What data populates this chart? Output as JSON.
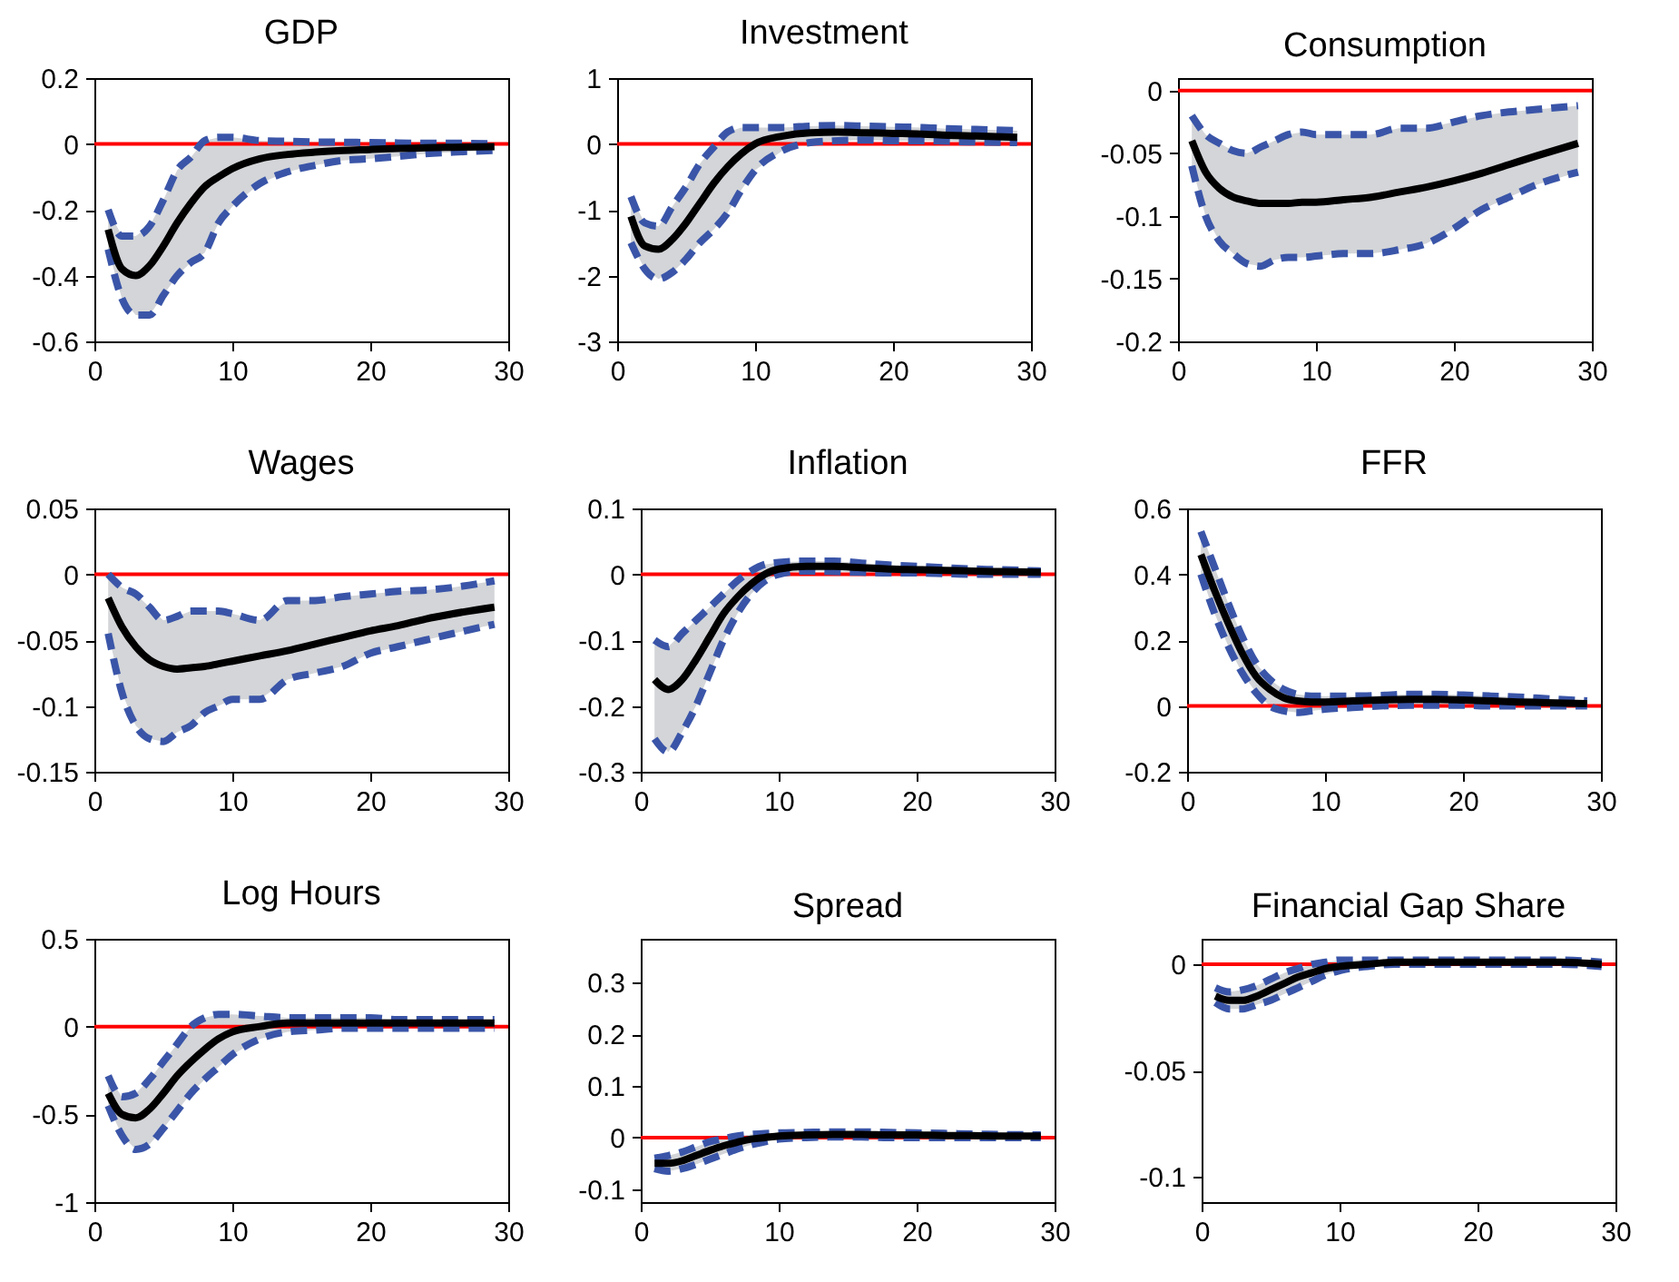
{
  "chart_data": [
    {
      "type": "line",
      "title": "GDP",
      "x": [
        1,
        2,
        3,
        4,
        5,
        6,
        7,
        8,
        9,
        10,
        12,
        14,
        16,
        18,
        20,
        22,
        24,
        26,
        29
      ],
      "xlim": [
        0,
        30
      ],
      "xticks": [
        0,
        10,
        20,
        30
      ],
      "ylim": [
        -0.6,
        0.2
      ],
      "yticks": [
        -0.6,
        -0.4,
        -0.2,
        0,
        0.2
      ],
      "ref_lines": [
        {
          "axis": "y",
          "value": 0,
          "color": "#ff0000"
        }
      ],
      "series": [
        {
          "color": "#3a55a8",
          "line_style": "dashed",
          "values": [
            -0.32,
            -0.47,
            -0.52,
            -0.52,
            -0.46,
            -0.4,
            -0.36,
            -0.33,
            -0.24,
            -0.19,
            -0.12,
            -0.085,
            -0.065,
            -0.05,
            -0.045,
            -0.038,
            -0.03,
            -0.025,
            -0.02
          ]
        },
        {
          "color": "#3a55a8",
          "line_style": "dashed",
          "values": [
            -0.2,
            -0.28,
            -0.28,
            -0.25,
            -0.17,
            -0.08,
            -0.04,
            0.01,
            0.02,
            0.02,
            0.01,
            0.008,
            0.006,
            0.005,
            0.004,
            0.003,
            0.002,
            0.002,
            0.0
          ]
        },
        {
          "color": "#000000",
          "line_style": "solid",
          "values": [
            -0.26,
            -0.38,
            -0.4,
            -0.37,
            -0.31,
            -0.24,
            -0.18,
            -0.13,
            -0.1,
            -0.075,
            -0.045,
            -0.032,
            -0.025,
            -0.02,
            -0.017,
            -0.014,
            -0.012,
            -0.01,
            -0.008
          ],
          "lower": [
            -0.32,
            -0.47,
            -0.52,
            -0.52,
            -0.46,
            -0.4,
            -0.36,
            -0.33,
            -0.24,
            -0.19,
            -0.12,
            -0.085,
            -0.065,
            -0.05,
            -0.045,
            -0.038,
            -0.03,
            -0.025,
            -0.02
          ],
          "upper": [
            -0.2,
            -0.28,
            -0.28,
            -0.25,
            -0.17,
            -0.08,
            -0.04,
            0.01,
            0.02,
            0.02,
            0.01,
            0.008,
            0.006,
            0.005,
            0.004,
            0.003,
            0.002,
            0.002,
            0.0
          ]
        }
      ]
    },
    {
      "type": "line",
      "title": "Investment",
      "x": [
        1,
        2,
        3,
        4,
        5,
        6,
        7,
        8,
        9,
        10,
        12,
        14,
        16,
        18,
        20,
        22,
        24,
        26,
        29
      ],
      "xlim": [
        0,
        30
      ],
      "xticks": [
        0,
        10,
        20,
        30
      ],
      "ylim": [
        -3,
        1
      ],
      "yticks": [
        -3,
        -2,
        -1,
        0,
        1
      ],
      "ref_lines": [
        {
          "axis": "y",
          "value": 0,
          "color": "#ff0000"
        }
      ],
      "series": [
        {
          "color": "#3a55a8",
          "line_style": "dashed",
          "values": [
            -1.5,
            -1.9,
            -2.05,
            -1.95,
            -1.75,
            -1.5,
            -1.3,
            -1.05,
            -0.7,
            -0.4,
            -0.1,
            0.02,
            0.05,
            0.06,
            0.05,
            0.05,
            0.04,
            0.03,
            0.02
          ]
        },
        {
          "color": "#3a55a8",
          "line_style": "dashed",
          "values": [
            -0.8,
            -1.2,
            -1.25,
            -0.95,
            -0.65,
            -0.3,
            -0.05,
            0.18,
            0.25,
            0.25,
            0.25,
            0.27,
            0.28,
            0.27,
            0.26,
            0.25,
            0.23,
            0.22,
            0.2
          ]
        },
        {
          "color": "#000000",
          "line_style": "solid",
          "values": [
            -1.1,
            -1.55,
            -1.6,
            -1.45,
            -1.2,
            -0.9,
            -0.6,
            -0.35,
            -0.15,
            0,
            0.12,
            0.17,
            0.18,
            0.17,
            0.16,
            0.15,
            0.13,
            0.12,
            0.1
          ],
          "lower": [
            -1.5,
            -1.9,
            -2.05,
            -1.95,
            -1.75,
            -1.5,
            -1.3,
            -1.05,
            -0.7,
            -0.4,
            -0.1,
            0.02,
            0.05,
            0.06,
            0.05,
            0.05,
            0.04,
            0.03,
            0.02
          ],
          "upper": [
            -0.8,
            -1.2,
            -1.25,
            -0.95,
            -0.65,
            -0.3,
            -0.05,
            0.18,
            0.25,
            0.25,
            0.25,
            0.27,
            0.28,
            0.27,
            0.26,
            0.25,
            0.23,
            0.22,
            0.2
          ]
        }
      ]
    },
    {
      "type": "line",
      "title": "Consumption",
      "x": [
        1,
        2,
        3,
        4,
        5,
        6,
        7,
        8,
        9,
        10,
        12,
        14,
        16,
        18,
        20,
        22,
        24,
        26,
        29
      ],
      "xlim": [
        0,
        30
      ],
      "xticks": [
        0,
        10,
        20,
        30
      ],
      "ylim": [
        -0.2,
        0.01
      ],
      "yticks": [
        -0.2,
        -0.15,
        -0.1,
        -0.05,
        0
      ],
      "ref_lines": [
        {
          "axis": "y",
          "value": 0,
          "color": "#ff0000"
        }
      ],
      "series": [
        {
          "color": "#3a55a8",
          "line_style": "dashed",
          "values": [
            -0.06,
            -0.1,
            -0.12,
            -0.13,
            -0.138,
            -0.14,
            -0.135,
            -0.133,
            -0.133,
            -0.132,
            -0.13,
            -0.13,
            -0.127,
            -0.122,
            -0.11,
            -0.095,
            -0.085,
            -0.075,
            -0.065
          ]
        },
        {
          "color": "#3a55a8",
          "line_style": "dashed",
          "values": [
            -0.02,
            -0.035,
            -0.042,
            -0.048,
            -0.05,
            -0.045,
            -0.04,
            -0.035,
            -0.033,
            -0.035,
            -0.035,
            -0.035,
            -0.03,
            -0.03,
            -0.025,
            -0.02,
            -0.017,
            -0.015,
            -0.012
          ]
        },
        {
          "color": "#000000",
          "line_style": "solid",
          "values": [
            -0.04,
            -0.065,
            -0.078,
            -0.085,
            -0.088,
            -0.09,
            -0.09,
            -0.09,
            -0.089,
            -0.089,
            -0.087,
            -0.085,
            -0.081,
            -0.077,
            -0.072,
            -0.066,
            -0.059,
            -0.052,
            -0.042
          ],
          "lower": [
            -0.06,
            -0.1,
            -0.12,
            -0.13,
            -0.138,
            -0.14,
            -0.135,
            -0.133,
            -0.133,
            -0.132,
            -0.13,
            -0.13,
            -0.127,
            -0.122,
            -0.11,
            -0.095,
            -0.085,
            -0.075,
            -0.065
          ],
          "upper": [
            -0.02,
            -0.035,
            -0.042,
            -0.048,
            -0.05,
            -0.045,
            -0.04,
            -0.035,
            -0.033,
            -0.035,
            -0.035,
            -0.035,
            -0.03,
            -0.03,
            -0.025,
            -0.02,
            -0.017,
            -0.015,
            -0.012
          ]
        }
      ]
    },
    {
      "type": "line",
      "title": "Wages",
      "x": [
        1,
        2,
        3,
        4,
        5,
        6,
        7,
        8,
        9,
        10,
        12,
        14,
        16,
        18,
        20,
        22,
        24,
        26,
        29
      ],
      "xlim": [
        0,
        30
      ],
      "xticks": [
        0,
        10,
        20,
        30
      ],
      "ylim": [
        -0.15,
        0.05
      ],
      "yticks": [
        -0.15,
        -0.1,
        -0.05,
        0,
        0.05
      ],
      "ref_lines": [
        {
          "axis": "y",
          "value": 0,
          "color": "#ff0000"
        }
      ],
      "series": [
        {
          "color": "#3a55a8",
          "line_style": "dashed",
          "values": [
            -0.045,
            -0.09,
            -0.115,
            -0.125,
            -0.127,
            -0.12,
            -0.115,
            -0.105,
            -0.1,
            -0.095,
            -0.095,
            -0.08,
            -0.075,
            -0.07,
            -0.06,
            -0.055,
            -0.05,
            -0.045,
            -0.038
          ]
        },
        {
          "color": "#3a55a8",
          "line_style": "dashed",
          "values": [
            0.0,
            -0.01,
            -0.015,
            -0.025,
            -0.035,
            -0.032,
            -0.028,
            -0.028,
            -0.028,
            -0.03,
            -0.035,
            -0.02,
            -0.02,
            -0.017,
            -0.015,
            -0.013,
            -0.012,
            -0.01,
            -0.005
          ]
        },
        {
          "color": "#000000",
          "line_style": "solid",
          "values": [
            -0.018,
            -0.04,
            -0.055,
            -0.065,
            -0.07,
            -0.072,
            -0.071,
            -0.07,
            -0.068,
            -0.066,
            -0.062,
            -0.058,
            -0.053,
            -0.048,
            -0.043,
            -0.039,
            -0.034,
            -0.03,
            -0.025
          ],
          "lower": [
            -0.045,
            -0.09,
            -0.115,
            -0.125,
            -0.127,
            -0.12,
            -0.115,
            -0.105,
            -0.1,
            -0.095,
            -0.095,
            -0.08,
            -0.075,
            -0.07,
            -0.06,
            -0.055,
            -0.05,
            -0.045,
            -0.038
          ],
          "upper": [
            0.0,
            -0.01,
            -0.015,
            -0.025,
            -0.035,
            -0.032,
            -0.028,
            -0.028,
            -0.028,
            -0.03,
            -0.035,
            -0.02,
            -0.02,
            -0.017,
            -0.015,
            -0.013,
            -0.012,
            -0.01,
            -0.005
          ]
        }
      ]
    },
    {
      "type": "line",
      "title": "Inflation",
      "x": [
        1,
        2,
        3,
        4,
        5,
        6,
        7,
        8,
        9,
        10,
        12,
        14,
        16,
        18,
        20,
        22,
        24,
        26,
        29
      ],
      "xlim": [
        0,
        30
      ],
      "xticks": [
        0,
        10,
        20,
        30
      ],
      "ylim": [
        -0.3,
        0.1
      ],
      "yticks": [
        -0.3,
        -0.2,
        -0.1,
        0,
        0.1
      ],
      "ref_lines": [
        {
          "axis": "y",
          "value": 0,
          "color": "#ff0000"
        }
      ],
      "series": [
        {
          "color": "#3a55a8",
          "line_style": "dashed",
          "values": [
            -0.25,
            -0.27,
            -0.24,
            -0.2,
            -0.15,
            -0.1,
            -0.06,
            -0.03,
            -0.01,
            0.0,
            0.005,
            0.004,
            0.003,
            0.002,
            0.002,
            0.001,
            0.0,
            0.0,
            0.0
          ]
        },
        {
          "color": "#3a55a8",
          "line_style": "dashed",
          "values": [
            -0.1,
            -0.11,
            -0.09,
            -0.07,
            -0.05,
            -0.03,
            -0.01,
            0.005,
            0.015,
            0.018,
            0.02,
            0.02,
            0.017,
            0.014,
            0.012,
            0.01,
            0.008,
            0.007,
            0.005
          ]
        },
        {
          "color": "#000000",
          "line_style": "solid",
          "values": [
            -0.16,
            -0.175,
            -0.16,
            -0.13,
            -0.095,
            -0.06,
            -0.035,
            -0.015,
            0.0,
            0.008,
            0.012,
            0.012,
            0.01,
            0.008,
            0.007,
            0.006,
            0.005,
            0.004,
            0.003
          ],
          "lower": [
            -0.25,
            -0.27,
            -0.24,
            -0.2,
            -0.15,
            -0.1,
            -0.06,
            -0.03,
            -0.01,
            0.0,
            0.005,
            0.004,
            0.003,
            0.002,
            0.002,
            0.001,
            0.0,
            0.0,
            0.0
          ],
          "upper": [
            -0.1,
            -0.11,
            -0.09,
            -0.07,
            -0.05,
            -0.03,
            -0.01,
            0.005,
            0.015,
            0.018,
            0.02,
            0.02,
            0.017,
            0.014,
            0.012,
            0.01,
            0.008,
            0.007,
            0.005
          ]
        }
      ]
    },
    {
      "type": "line",
      "title": "FFR",
      "x": [
        1,
        2,
        3,
        4,
        5,
        6,
        7,
        8,
        9,
        10,
        12,
        14,
        16,
        18,
        20,
        22,
        24,
        26,
        29
      ],
      "xlim": [
        0,
        30
      ],
      "xticks": [
        0,
        10,
        20,
        30
      ],
      "ylim": [
        -0.2,
        0.6
      ],
      "yticks": [
        -0.2,
        0,
        0.2,
        0.4,
        0.6
      ],
      "ref_lines": [
        {
          "axis": "y",
          "value": 0,
          "color": "#ff0000"
        }
      ],
      "series": [
        {
          "color": "#3a55a8",
          "line_style": "dashed",
          "values": [
            0.4,
            0.28,
            0.18,
            0.1,
            0.04,
            0.0,
            -0.015,
            -0.02,
            -0.015,
            -0.01,
            -0.005,
            0.0,
            0.002,
            0.002,
            0.002,
            0.0,
            0.0,
            0.0,
            0.0
          ]
        },
        {
          "color": "#3a55a8",
          "line_style": "dashed",
          "values": [
            0.53,
            0.42,
            0.31,
            0.21,
            0.13,
            0.08,
            0.05,
            0.035,
            0.03,
            0.03,
            0.03,
            0.032,
            0.035,
            0.035,
            0.033,
            0.03,
            0.027,
            0.022,
            0.015
          ]
        },
        {
          "color": "#000000",
          "line_style": "solid",
          "values": [
            0.46,
            0.35,
            0.25,
            0.16,
            0.09,
            0.05,
            0.025,
            0.015,
            0.012,
            0.012,
            0.015,
            0.018,
            0.02,
            0.02,
            0.018,
            0.015,
            0.012,
            0.01,
            0.007
          ],
          "lower": [
            0.4,
            0.28,
            0.18,
            0.1,
            0.04,
            0.0,
            -0.015,
            -0.02,
            -0.015,
            -0.01,
            -0.005,
            0.0,
            0.002,
            0.002,
            0.002,
            0.0,
            0.0,
            0.0,
            0.0
          ],
          "upper": [
            0.53,
            0.42,
            0.31,
            0.21,
            0.13,
            0.08,
            0.05,
            0.035,
            0.03,
            0.03,
            0.03,
            0.032,
            0.035,
            0.035,
            0.033,
            0.03,
            0.027,
            0.022,
            0.015
          ]
        }
      ]
    },
    {
      "type": "line",
      "title": "Log Hours",
      "x": [
        1,
        2,
        3,
        4,
        5,
        6,
        7,
        8,
        9,
        10,
        12,
        14,
        16,
        18,
        20,
        22,
        24,
        26,
        29
      ],
      "xlim": [
        0,
        30
      ],
      "xticks": [
        0,
        10,
        20,
        30
      ],
      "ylim": [
        -1,
        0.5
      ],
      "yticks": [
        -1,
        -0.5,
        0,
        0.5
      ],
      "ref_lines": [
        {
          "axis": "y",
          "value": 0,
          "color": "#ff0000"
        }
      ],
      "series": [
        {
          "color": "#3a55a8",
          "line_style": "dashed",
          "values": [
            -0.45,
            -0.62,
            -0.7,
            -0.67,
            -0.58,
            -0.48,
            -0.38,
            -0.3,
            -0.23,
            -0.16,
            -0.07,
            -0.03,
            -0.02,
            -0.01,
            -0.01,
            -0.01,
            -0.01,
            -0.01,
            -0.01
          ]
        },
        {
          "color": "#3a55a8",
          "line_style": "dashed",
          "values": [
            -0.28,
            -0.4,
            -0.38,
            -0.3,
            -0.2,
            -0.1,
            0.0,
            0.05,
            0.07,
            0.07,
            0.06,
            0.05,
            0.05,
            0.05,
            0.05,
            0.04,
            0.04,
            0.04,
            0.04
          ]
        },
        {
          "color": "#000000",
          "line_style": "solid",
          "values": [
            -0.38,
            -0.5,
            -0.52,
            -0.47,
            -0.38,
            -0.28,
            -0.2,
            -0.13,
            -0.07,
            -0.03,
            0.0,
            0.02,
            0.02,
            0.02,
            0.02,
            0.02,
            0.02,
            0.02,
            0.02
          ],
          "lower": [
            -0.45,
            -0.62,
            -0.7,
            -0.67,
            -0.58,
            -0.48,
            -0.38,
            -0.3,
            -0.23,
            -0.16,
            -0.07,
            -0.03,
            -0.02,
            -0.01,
            -0.01,
            -0.01,
            -0.01,
            -0.01,
            -0.01
          ],
          "upper": [
            -0.28,
            -0.4,
            -0.38,
            -0.3,
            -0.2,
            -0.1,
            0.0,
            0.05,
            0.07,
            0.07,
            0.06,
            0.05,
            0.05,
            0.05,
            0.05,
            0.04,
            0.04,
            0.04,
            0.04
          ]
        }
      ]
    },
    {
      "type": "line",
      "title": "Spread",
      "x": [
        1,
        2,
        3,
        4,
        5,
        6,
        7,
        8,
        9,
        10,
        12,
        14,
        16,
        18,
        20,
        22,
        24,
        26,
        29
      ],
      "xlim": [
        0,
        30
      ],
      "xticks": [
        0,
        10,
        20,
        30
      ],
      "ylim": [
        -0.125,
        0.385
      ],
      "yticks": [
        -0.1,
        0,
        0.1,
        0.2,
        0.3
      ],
      "ref_lines": [
        {
          "axis": "y",
          "value": 0,
          "color": "#ff0000"
        }
      ],
      "series": [
        {
          "color": "#3a55a8",
          "line_style": "dashed",
          "values": [
            -0.06,
            -0.065,
            -0.06,
            -0.052,
            -0.042,
            -0.032,
            -0.022,
            -0.014,
            -0.008,
            -0.003,
            0.0,
            0.001,
            0.001,
            0.0,
            0.0,
            0.0,
            0.0,
            0.0,
            0.0
          ]
        },
        {
          "color": "#3a55a8",
          "line_style": "dashed",
          "values": [
            -0.04,
            -0.035,
            -0.028,
            -0.018,
            -0.008,
            -0.002,
            0.003,
            0.006,
            0.008,
            0.009,
            0.01,
            0.011,
            0.011,
            0.01,
            0.009,
            0.008,
            0.007,
            0.006,
            0.005
          ]
        },
        {
          "color": "#000000",
          "line_style": "solid",
          "values": [
            -0.05,
            -0.05,
            -0.045,
            -0.035,
            -0.025,
            -0.016,
            -0.009,
            -0.003,
            0.0,
            0.003,
            0.005,
            0.006,
            0.006,
            0.005,
            0.005,
            0.004,
            0.004,
            0.003,
            0.003
          ],
          "lower": [
            -0.06,
            -0.065,
            -0.06,
            -0.052,
            -0.042,
            -0.032,
            -0.022,
            -0.014,
            -0.008,
            -0.003,
            0.0,
            0.001,
            0.001,
            0.0,
            0.0,
            0.0,
            0.0,
            0.0,
            0.0
          ],
          "upper": [
            -0.04,
            -0.035,
            -0.028,
            -0.018,
            -0.008,
            -0.002,
            0.003,
            0.006,
            0.008,
            0.009,
            0.01,
            0.011,
            0.011,
            0.01,
            0.009,
            0.008,
            0.007,
            0.006,
            0.005
          ]
        }
      ]
    },
    {
      "type": "line",
      "title": "Financial Gap Share",
      "x": [
        1,
        2,
        3,
        4,
        5,
        6,
        7,
        8,
        9,
        10,
        12,
        14,
        16,
        18,
        20,
        22,
        24,
        26,
        29
      ],
      "xlim": [
        0,
        30
      ],
      "xticks": [
        0,
        10,
        20,
        30
      ],
      "ylim": [
        -0.112,
        0.012
      ],
      "yticks": [
        -0.1,
        -0.05,
        0
      ],
      "ref_lines": [
        {
          "axis": "y",
          "value": 0,
          "color": "#ff0000"
        }
      ],
      "series": [
        {
          "color": "#3a55a8",
          "line_style": "dashed",
          "values": [
            -0.018,
            -0.021,
            -0.021,
            -0.019,
            -0.017,
            -0.014,
            -0.011,
            -0.008,
            -0.005,
            -0.003,
            -0.001,
            0.0,
            0.0,
            0.0,
            0.0,
            0.0,
            0.0,
            0.0,
            -0.001
          ]
        },
        {
          "color": "#3a55a8",
          "line_style": "dashed",
          "values": [
            -0.011,
            -0.013,
            -0.012,
            -0.01,
            -0.007,
            -0.004,
            -0.002,
            0.0,
            0.001,
            0.002,
            0.002,
            0.002,
            0.002,
            0.002,
            0.002,
            0.002,
            0.002,
            0.002,
            0.001
          ]
        },
        {
          "color": "#000000",
          "line_style": "solid",
          "values": [
            -0.015,
            -0.017,
            -0.017,
            -0.015,
            -0.012,
            -0.009,
            -0.006,
            -0.004,
            -0.002,
            -0.001,
            0.0,
            0.001,
            0.001,
            0.001,
            0.001,
            0.001,
            0.001,
            0.001,
            0.0
          ],
          "lower": [
            -0.018,
            -0.021,
            -0.021,
            -0.019,
            -0.017,
            -0.014,
            -0.011,
            -0.008,
            -0.005,
            -0.003,
            -0.001,
            0.0,
            0.0,
            0.0,
            0.0,
            0.0,
            0.0,
            0.0,
            -0.001
          ],
          "upper": [
            -0.011,
            -0.013,
            -0.012,
            -0.01,
            -0.007,
            -0.004,
            -0.002,
            0.0,
            0.001,
            0.002,
            0.002,
            0.002,
            0.002,
            0.002,
            0.002,
            0.002,
            0.002,
            0.002,
            0.001
          ]
        }
      ]
    }
  ]
}
